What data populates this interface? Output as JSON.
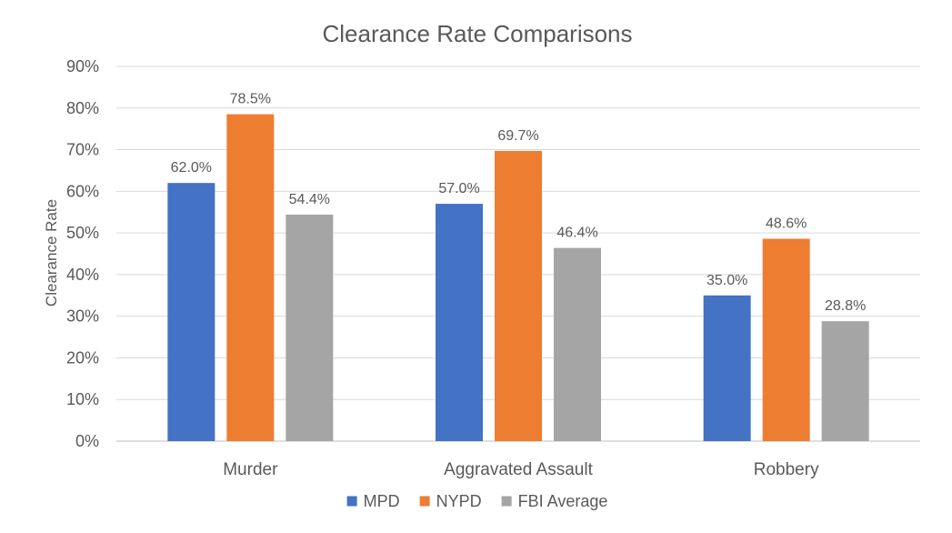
{
  "chart_data": {
    "type": "bar",
    "title": "Clearance Rate Comparisons",
    "xlabel": "",
    "ylabel": "Clearance Rate",
    "categories": [
      "Murder",
      "Aggravated Assault",
      "Robbery"
    ],
    "series": [
      {
        "name": "MPD",
        "color": "#4472C4",
        "values": [
          62.0,
          57.0,
          35.0
        ],
        "labels": [
          "62.0%",
          "57.0%",
          "35.0%"
        ]
      },
      {
        "name": "NYPD",
        "color": "#ED7D31",
        "values": [
          78.5,
          69.7,
          48.6
        ],
        "labels": [
          "78.5%",
          "69.7%",
          "48.6%"
        ]
      },
      {
        "name": "FBI Average",
        "color": "#A5A5A5",
        "values": [
          54.4,
          46.4,
          28.8
        ],
        "labels": [
          "54.4%",
          "46.4%",
          "28.8%"
        ]
      }
    ],
    "ylim": [
      0,
      90
    ],
    "yticks": [
      0,
      10,
      20,
      30,
      40,
      50,
      60,
      70,
      80,
      90
    ],
    "ytick_labels": [
      "0%",
      "10%",
      "20%",
      "30%",
      "40%",
      "50%",
      "60%",
      "70%",
      "80%",
      "90%"
    ],
    "grid": true,
    "legend_position": "bottom"
  }
}
